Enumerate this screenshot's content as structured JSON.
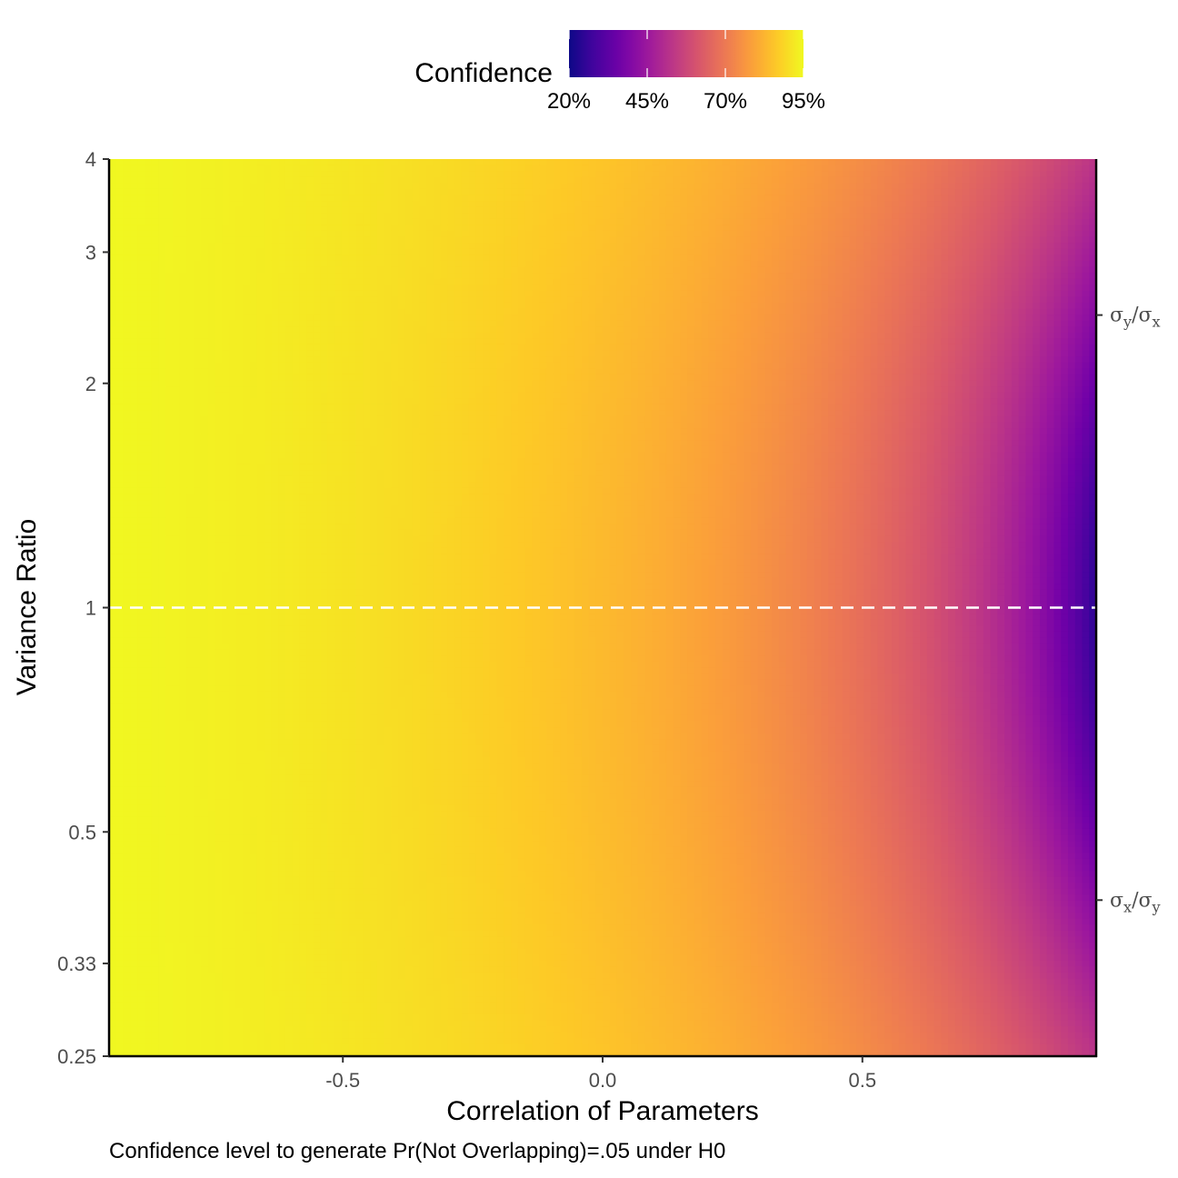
{
  "chart_data": {
    "type": "heatmap",
    "title": "",
    "caption": "Confidence level to generate Pr(Not Overlapping)=.05 under H0",
    "xlabel": "Correlation of Parameters",
    "ylabel": "Variance Ratio",
    "x_range": [
      -0.95,
      0.95
    ],
    "y_range_log2": [
      -2,
      2
    ],
    "y_scale": "log2",
    "x_ticks": [
      {
        "value": -0.5,
        "label": "-0.5"
      },
      {
        "value": 0.0,
        "label": "0.0"
      },
      {
        "value": 0.5,
        "label": "0.5"
      }
    ],
    "y_ticks": [
      {
        "value": 4,
        "label": "4"
      },
      {
        "value": 3,
        "label": "3"
      },
      {
        "value": 2,
        "label": "2"
      },
      {
        "value": 1,
        "label": "1"
      },
      {
        "value": 0.5,
        "label": "0.5"
      },
      {
        "value": 0.333,
        "label": "0.33"
      },
      {
        "value": 0.25,
        "label": "0.25"
      }
    ],
    "secondary_y_ticks": [
      {
        "value": 2.47,
        "base": "σ",
        "sub1": "y",
        "mid": "/σ",
        "sub2": "x"
      },
      {
        "value": 0.405,
        "base": "σ",
        "sub1": "x",
        "mid": "/σ",
        "sub2": "y"
      }
    ],
    "reference_line": {
      "y": 1,
      "style": "dashed",
      "color": "#ffffff"
    },
    "value_function": "confidence = 2*Phi(1.96*sqrt(1+r^2-2*rho*r)/(1+r)) - 1, r = sqrt(variance ratio or its inverse)",
    "grid": false,
    "legend": {
      "title": "Confidence",
      "position": "top",
      "range": [
        0.2,
        0.95
      ],
      "ticks": [
        {
          "value": 0.2,
          "label": "20%"
        },
        {
          "value": 0.45,
          "label": "45%"
        },
        {
          "value": 0.7,
          "label": "70%"
        },
        {
          "value": 0.95,
          "label": "95%"
        }
      ],
      "colormap": "plasma"
    },
    "colormap_stops": [
      "#0d0887",
      "#46039f",
      "#7201a8",
      "#9c179e",
      "#bd3786",
      "#d8576b",
      "#ed7953",
      "#fb9f3a",
      "#fdca26",
      "#f0f921"
    ],
    "background": "#ffffff",
    "axis_color": "#000000"
  }
}
